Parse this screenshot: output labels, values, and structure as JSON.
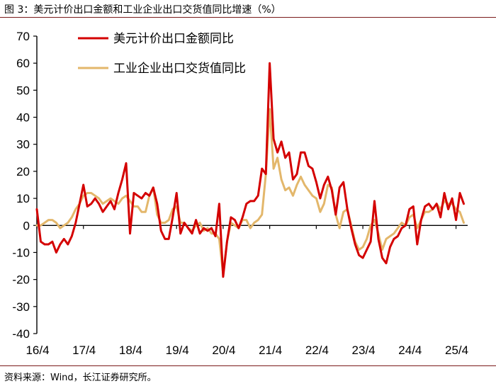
{
  "header": {
    "title": "图 3：美元计价出口金额和工业企业出口交货值同比增速（%）"
  },
  "footer": {
    "source": "资料来源：Wind，长江证券研究所。"
  },
  "colors": {
    "series1": "#d40000",
    "series2": "#e3b76b",
    "axis": "#000000"
  },
  "chart_data": {
    "type": "line",
    "title": "图 3：美元计价出口金额和工业企业出口交货值同比增速（%）",
    "xlabel": "",
    "ylabel": "",
    "ylim": [
      -40,
      70
    ],
    "yticks": [
      70,
      60,
      50,
      40,
      30,
      20,
      10,
      0,
      -10,
      -20,
      -30,
      -40
    ],
    "xlim": [
      0,
      111
    ],
    "xticks": [
      {
        "label": "16/4",
        "x": 0
      },
      {
        "label": "17/4",
        "x": 12
      },
      {
        "label": "18/4",
        "x": 24
      },
      {
        "label": "19/4",
        "x": 36
      },
      {
        "label": "20/4",
        "x": 48
      },
      {
        "label": "21/4",
        "x": 60
      },
      {
        "label": "22/4",
        "x": 72
      },
      {
        "label": "23/4",
        "x": 84
      },
      {
        "label": "24/4",
        "x": 96
      },
      {
        "label": "25/4",
        "x": 108
      }
    ],
    "legend_position": "top-left",
    "series": [
      {
        "name": "美元计价出口金额同比",
        "values": [
          6,
          -6,
          -7,
          -7,
          -6,
          -10,
          -7,
          -5,
          -7,
          -4,
          1,
          8,
          15,
          7,
          8,
          10,
          8,
          5,
          7,
          9,
          6,
          12,
          17,
          23,
          -3,
          12,
          11,
          10,
          12,
          11,
          14,
          8,
          -2,
          -5,
          -5,
          3,
          12,
          -3,
          1,
          -1,
          -3,
          2,
          -3,
          -1,
          -2,
          -1,
          -4,
          8,
          -19,
          -6,
          3,
          2,
          -1,
          3,
          8,
          9,
          9,
          11,
          21,
          19,
          60,
          32,
          27,
          31,
          25,
          27,
          17,
          19,
          27,
          27,
          22,
          21,
          16,
          10,
          15,
          18,
          13,
          4,
          14,
          16,
          6,
          -1,
          -7,
          -11,
          -12,
          -9,
          -6,
          9,
          -5,
          -12,
          -14,
          -8,
          -5,
          -4,
          -1,
          0,
          6,
          7,
          -7,
          2,
          7,
          8,
          6,
          8,
          3,
          12,
          6,
          10,
          2,
          12,
          8
        ],
        "color": "#d40000"
      },
      {
        "name": "工业企业出口交货值同比",
        "values": [
          0,
          0,
          1,
          2,
          2,
          1,
          -1,
          0,
          1,
          3,
          6,
          8,
          11,
          12,
          12,
          11,
          10,
          8,
          9,
          10,
          9,
          8,
          10,
          11,
          9,
          7,
          7,
          5,
          5,
          11,
          14,
          4,
          1,
          1,
          2,
          6,
          7,
          1,
          1,
          -1,
          -2,
          0,
          1,
          -2,
          -1,
          -3,
          -3,
          -5,
          -18,
          -6,
          1,
          0,
          -1,
          2,
          2,
          -1,
          1,
          2,
          4,
          19,
          43,
          21,
          25,
          17,
          13,
          14,
          11,
          15,
          18,
          15,
          13,
          11,
          10,
          5,
          8,
          15,
          14,
          4,
          -1,
          5,
          6,
          0,
          -6,
          -9,
          -8,
          -5,
          0,
          2,
          -3,
          -9,
          -5,
          -4,
          -3,
          -1,
          1,
          0,
          3,
          4,
          -1,
          2,
          5,
          5,
          6,
          8,
          6,
          9,
          8,
          8,
          6,
          5,
          1
        ],
        "color": "#e3b76b"
      }
    ]
  }
}
